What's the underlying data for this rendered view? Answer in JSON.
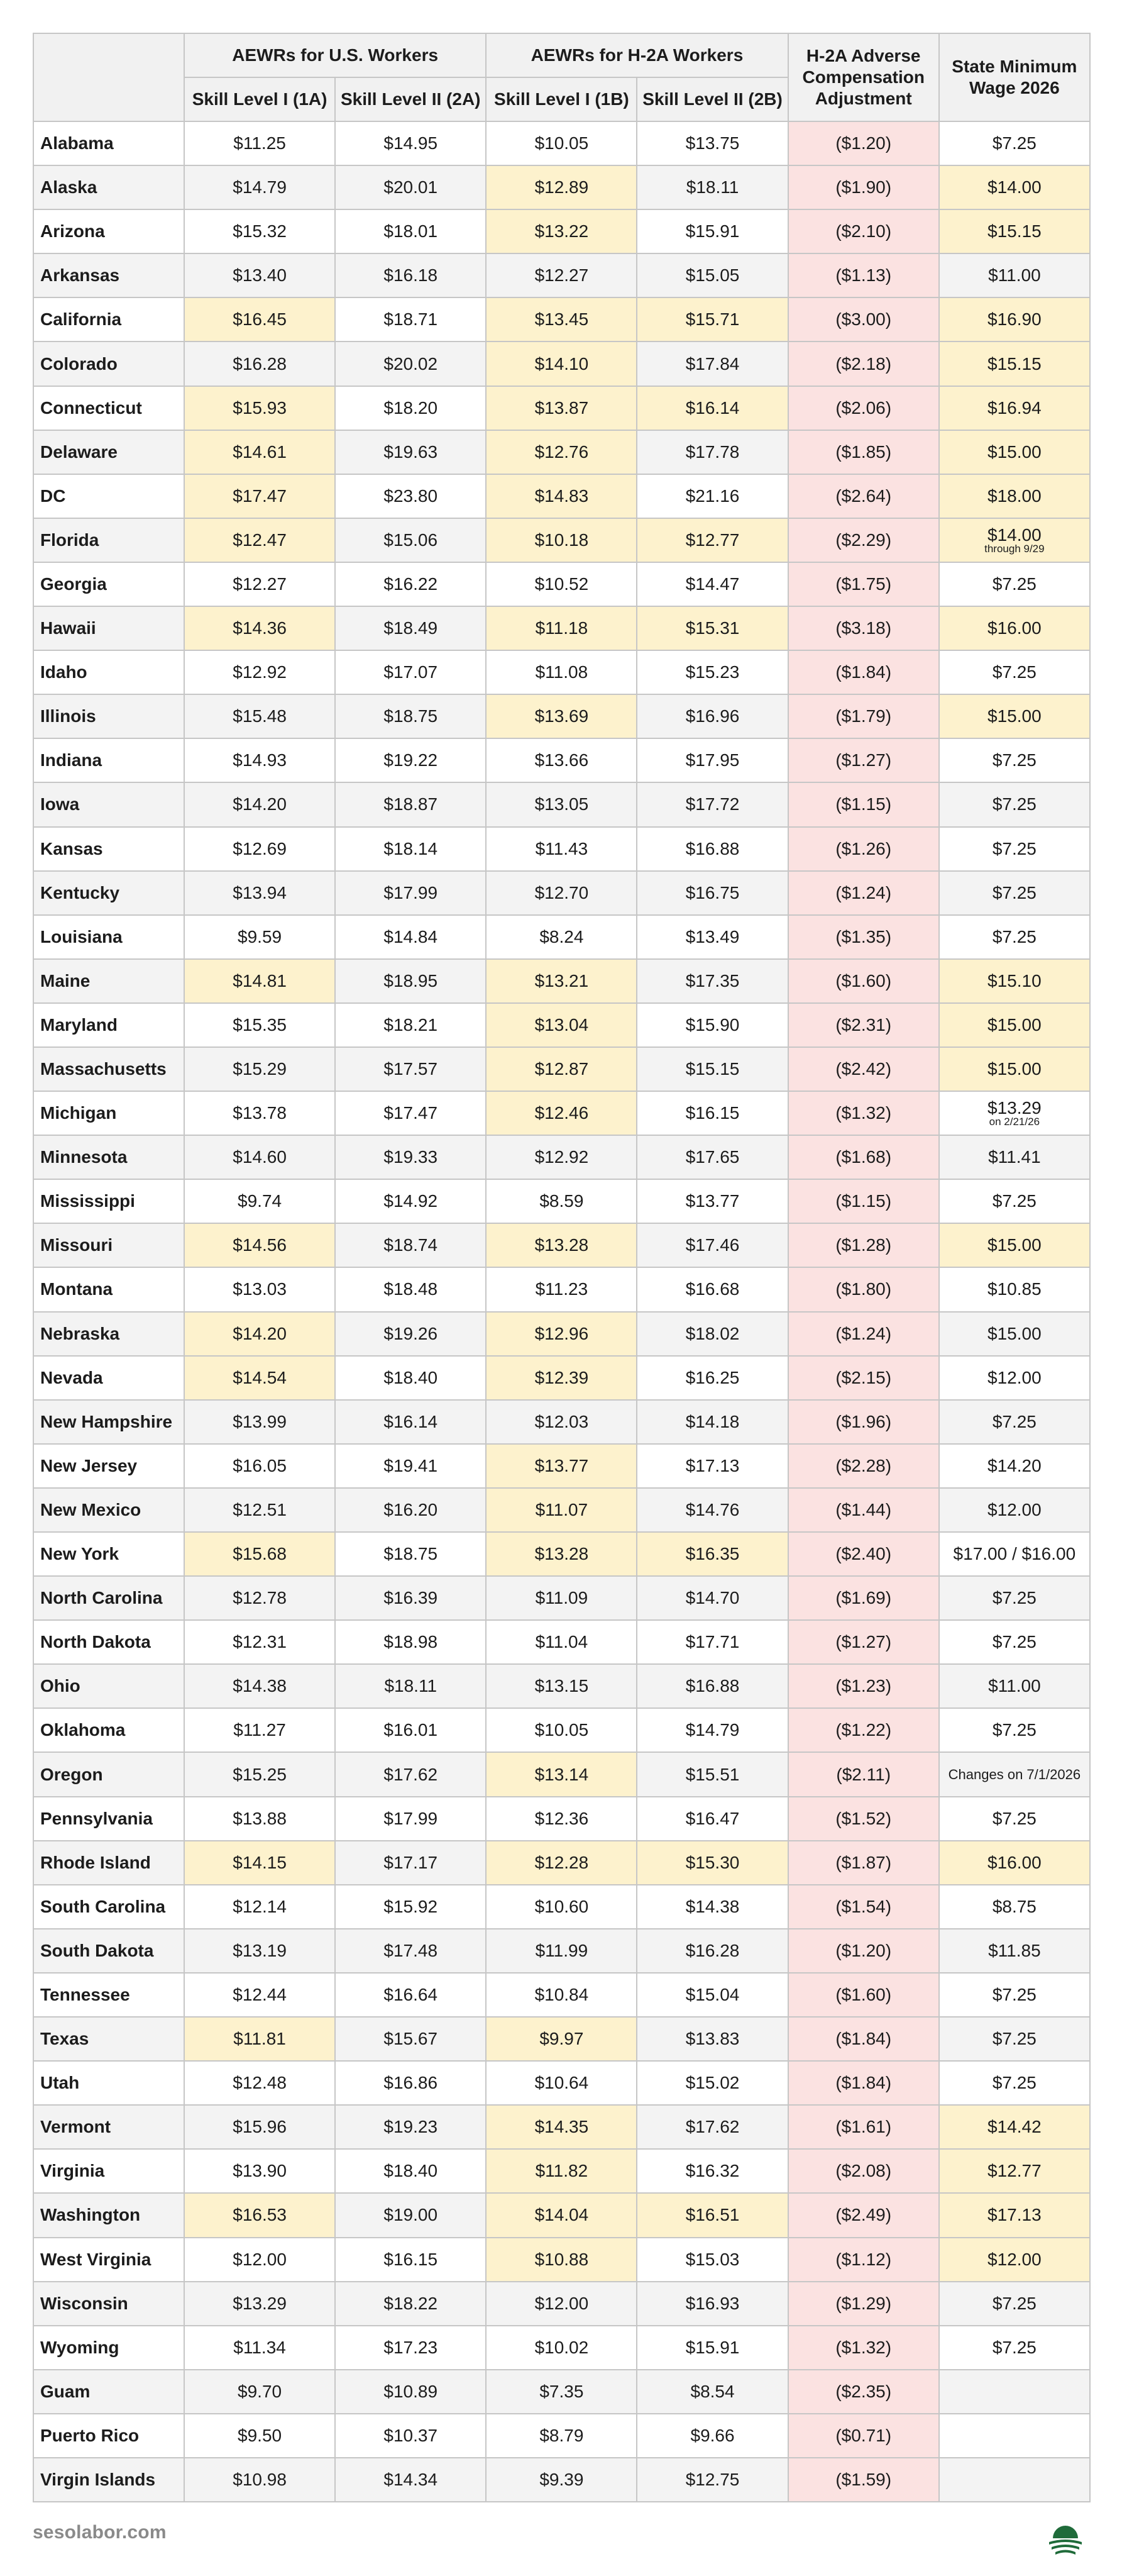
{
  "header": {
    "group_us": "AEWRs for U.S. Workers",
    "group_h2a": "AEWRs for H-2A Workers",
    "adjustment": [
      "H-2A Adverse",
      "Compensation",
      "Adjustment"
    ],
    "min_wage": [
      "State Minimum",
      "Wage 2026"
    ],
    "sub_1a": "Skill Level I (1A)",
    "sub_2a": "Skill Level II (2A)",
    "sub_1b": "Skill Level I (1B)",
    "sub_2b": "Skill Level II (2B)"
  },
  "rows": [
    {
      "state": "Alabama",
      "v1a": "$11.25",
      "v2a": "$14.95",
      "v1b": "$10.05",
      "v2b": "$13.75",
      "adj": "($1.20)",
      "min": "$7.25",
      "hl": []
    },
    {
      "state": "Alaska",
      "v1a": "$14.79",
      "v2a": "$20.01",
      "v1b": "$12.89",
      "v2b": "$18.11",
      "adj": "($1.90)",
      "min": "$14.00",
      "hl": [
        "v1b",
        "min"
      ]
    },
    {
      "state": "Arizona",
      "v1a": "$15.32",
      "v2a": "$18.01",
      "v1b": "$13.22",
      "v2b": "$15.91",
      "adj": "($2.10)",
      "min": "$15.15",
      "hl": [
        "v1b",
        "min"
      ]
    },
    {
      "state": "Arkansas",
      "v1a": "$13.40",
      "v2a": "$16.18",
      "v1b": "$12.27",
      "v2b": "$15.05",
      "adj": "($1.13)",
      "min": "$11.00",
      "hl": []
    },
    {
      "state": "California",
      "v1a": "$16.45",
      "v2a": "$18.71",
      "v1b": "$13.45",
      "v2b": "$15.71",
      "adj": "($3.00)",
      "min": "$16.90",
      "hl": [
        "v1a",
        "v1b",
        "v2b",
        "min"
      ]
    },
    {
      "state": "Colorado",
      "v1a": "$16.28",
      "v2a": "$20.02",
      "v1b": "$14.10",
      "v2b": "$17.84",
      "adj": "($2.18)",
      "min": "$15.15",
      "hl": [
        "v1b",
        "min"
      ]
    },
    {
      "state": "Connecticut",
      "v1a": "$15.93",
      "v2a": "$18.20",
      "v1b": "$13.87",
      "v2b": "$16.14",
      "adj": "($2.06)",
      "min": "$16.94",
      "hl": [
        "v1a",
        "v1b",
        "v2b",
        "min"
      ]
    },
    {
      "state": "Delaware",
      "v1a": "$14.61",
      "v2a": "$19.63",
      "v1b": "$12.76",
      "v2b": "$17.78",
      "adj": "($1.85)",
      "min": "$15.00",
      "hl": [
        "v1a",
        "v1b",
        "min"
      ]
    },
    {
      "state": "DC",
      "v1a": "$17.47",
      "v2a": "$23.80",
      "v1b": "$14.83",
      "v2b": "$21.16",
      "adj": "($2.64)",
      "min": "$18.00",
      "hl": [
        "v1a",
        "v1b",
        "min"
      ]
    },
    {
      "state": "Florida",
      "v1a": "$12.47",
      "v2a": "$15.06",
      "v1b": "$10.18",
      "v2b": "$12.77",
      "adj": "($2.29)",
      "min": "$14.00",
      "note": "through 9/29",
      "hl": [
        "v1a",
        "v1b",
        "v2b",
        "min"
      ]
    },
    {
      "state": "Georgia",
      "v1a": "$12.27",
      "v2a": "$16.22",
      "v1b": "$10.52",
      "v2b": "$14.47",
      "adj": "($1.75)",
      "min": "$7.25",
      "hl": []
    },
    {
      "state": "Hawaii",
      "v1a": "$14.36",
      "v2a": "$18.49",
      "v1b": "$11.18",
      "v2b": "$15.31",
      "adj": "($3.18)",
      "min": "$16.00",
      "hl": [
        "v1a",
        "v1b",
        "v2b",
        "min"
      ]
    },
    {
      "state": "Idaho",
      "v1a": "$12.92",
      "v2a": "$17.07",
      "v1b": "$11.08",
      "v2b": "$15.23",
      "adj": "($1.84)",
      "min": "$7.25",
      "hl": []
    },
    {
      "state": "Illinois",
      "v1a": "$15.48",
      "v2a": "$18.75",
      "v1b": "$13.69",
      "v2b": "$16.96",
      "adj": "($1.79)",
      "min": "$15.00",
      "hl": [
        "v1b",
        "min"
      ]
    },
    {
      "state": "Indiana",
      "v1a": "$14.93",
      "v2a": "$19.22",
      "v1b": "$13.66",
      "v2b": "$17.95",
      "adj": "($1.27)",
      "min": "$7.25",
      "hl": []
    },
    {
      "state": "Iowa",
      "v1a": "$14.20",
      "v2a": "$18.87",
      "v1b": "$13.05",
      "v2b": "$17.72",
      "adj": "($1.15)",
      "min": "$7.25",
      "hl": []
    },
    {
      "state": "Kansas",
      "v1a": "$12.69",
      "v2a": "$18.14",
      "v1b": "$11.43",
      "v2b": "$16.88",
      "adj": "($1.26)",
      "min": "$7.25",
      "hl": []
    },
    {
      "state": "Kentucky",
      "v1a": "$13.94",
      "v2a": "$17.99",
      "v1b": "$12.70",
      "v2b": "$16.75",
      "adj": "($1.24)",
      "min": "$7.25",
      "hl": []
    },
    {
      "state": "Louisiana",
      "v1a": "$9.59",
      "v2a": "$14.84",
      "v1b": "$8.24",
      "v2b": "$13.49",
      "adj": "($1.35)",
      "min": "$7.25",
      "hl": []
    },
    {
      "state": "Maine",
      "v1a": "$14.81",
      "v2a": "$18.95",
      "v1b": "$13.21",
      "v2b": "$17.35",
      "adj": "($1.60)",
      "min": "$15.10",
      "hl": [
        "v1a",
        "v1b",
        "min"
      ]
    },
    {
      "state": "Maryland",
      "v1a": "$15.35",
      "v2a": "$18.21",
      "v1b": "$13.04",
      "v2b": "$15.90",
      "adj": "($2.31)",
      "min": "$15.00",
      "hl": [
        "v1b",
        "min"
      ]
    },
    {
      "state": "Massachusetts",
      "v1a": "$15.29",
      "v2a": "$17.57",
      "v1b": "$12.87",
      "v2b": "$15.15",
      "adj": "($2.42)",
      "min": "$15.00",
      "hl": [
        "v1b",
        "min"
      ]
    },
    {
      "state": "Michigan",
      "v1a": "$13.78",
      "v2a": "$17.47",
      "v1b": "$12.46",
      "v2b": "$16.15",
      "adj": "($1.32)",
      "min": "$13.29",
      "note": "on 2/21/26",
      "hl": [
        "v1b"
      ]
    },
    {
      "state": "Minnesota",
      "v1a": "$14.60",
      "v2a": "$19.33",
      "v1b": "$12.92",
      "v2b": "$17.65",
      "adj": "($1.68)",
      "min": "$11.41",
      "hl": []
    },
    {
      "state": "Mississippi",
      "v1a": "$9.74",
      "v2a": "$14.92",
      "v1b": "$8.59",
      "v2b": "$13.77",
      "adj": "($1.15)",
      "min": "$7.25",
      "hl": []
    },
    {
      "state": "Missouri",
      "v1a": "$14.56",
      "v2a": "$18.74",
      "v1b": "$13.28",
      "v2b": "$17.46",
      "adj": "($1.28)",
      "min": "$15.00",
      "hl": [
        "v1a",
        "v1b",
        "min"
      ]
    },
    {
      "state": "Montana",
      "v1a": "$13.03",
      "v2a": "$18.48",
      "v1b": "$11.23",
      "v2b": "$16.68",
      "adj": "($1.80)",
      "min": "$10.85",
      "hl": []
    },
    {
      "state": "Nebraska",
      "v1a": "$14.20",
      "v2a": "$19.26",
      "v1b": "$12.96",
      "v2b": "$18.02",
      "adj": "($1.24)",
      "min": "$15.00",
      "hl": [
        "v1a",
        "v1b"
      ]
    },
    {
      "state": "Nevada",
      "v1a": "$14.54",
      "v2a": "$18.40",
      "v1b": "$12.39",
      "v2b": "$16.25",
      "adj": "($2.15)",
      "min": "$12.00",
      "hl": [
        "v1a",
        "v1b"
      ]
    },
    {
      "state": "New Hampshire",
      "v1a": "$13.99",
      "v2a": "$16.14",
      "v1b": "$12.03",
      "v2b": "$14.18",
      "adj": "($1.96)",
      "min": "$7.25",
      "hl": []
    },
    {
      "state": "New Jersey",
      "v1a": "$16.05",
      "v2a": "$19.41",
      "v1b": "$13.77",
      "v2b": "$17.13",
      "adj": "($2.28)",
      "min": "$14.20",
      "hl": [
        "v1b"
      ]
    },
    {
      "state": "New Mexico",
      "v1a": "$12.51",
      "v2a": "$16.20",
      "v1b": "$11.07",
      "v2b": "$14.76",
      "adj": "($1.44)",
      "min": "$12.00",
      "hl": [
        "v1b"
      ]
    },
    {
      "state": "New York",
      "v1a": "$15.68",
      "v2a": "$18.75",
      "v1b": "$13.28",
      "v2b": "$16.35",
      "adj": "($2.40)",
      "min": "$17.00 / $16.00",
      "hl": [
        "v1a",
        "v1b",
        "v2b"
      ]
    },
    {
      "state": "North Carolina",
      "v1a": "$12.78",
      "v2a": "$16.39",
      "v1b": "$11.09",
      "v2b": "$14.70",
      "adj": "($1.69)",
      "min": "$7.25",
      "hl": []
    },
    {
      "state": "North Dakota",
      "v1a": "$12.31",
      "v2a": "$18.98",
      "v1b": "$11.04",
      "v2b": "$17.71",
      "adj": "($1.27)",
      "min": "$7.25",
      "hl": []
    },
    {
      "state": "Ohio",
      "v1a": "$14.38",
      "v2a": "$18.11",
      "v1b": "$13.15",
      "v2b": "$16.88",
      "adj": "($1.23)",
      "min": "$11.00",
      "hl": []
    },
    {
      "state": "Oklahoma",
      "v1a": "$11.27",
      "v2a": "$16.01",
      "v1b": "$10.05",
      "v2b": "$14.79",
      "adj": "($1.22)",
      "min": "$7.25",
      "hl": []
    },
    {
      "state": "Oregon",
      "v1a": "$15.25",
      "v2a": "$17.62",
      "v1b": "$13.14",
      "v2b": "$15.51",
      "adj": "($2.11)",
      "min": "Changes on 7/1/2026",
      "small": true,
      "hl": [
        "v1b"
      ]
    },
    {
      "state": "Pennsylvania",
      "v1a": "$13.88",
      "v2a": "$17.99",
      "v1b": "$12.36",
      "v2b": "$16.47",
      "adj": "($1.52)",
      "min": "$7.25",
      "hl": []
    },
    {
      "state": "Rhode Island",
      "v1a": "$14.15",
      "v2a": "$17.17",
      "v1b": "$12.28",
      "v2b": "$15.30",
      "adj": "($1.87)",
      "min": "$16.00",
      "hl": [
        "v1a",
        "v1b",
        "v2b",
        "min"
      ]
    },
    {
      "state": "South Carolina",
      "v1a": "$12.14",
      "v2a": "$15.92",
      "v1b": "$10.60",
      "v2b": "$14.38",
      "adj": "($1.54)",
      "min": "$8.75",
      "hl": []
    },
    {
      "state": "South Dakota",
      "v1a": "$13.19",
      "v2a": "$17.48",
      "v1b": "$11.99",
      "v2b": "$16.28",
      "adj": "($1.20)",
      "min": "$11.85",
      "hl": []
    },
    {
      "state": "Tennessee",
      "v1a": "$12.44",
      "v2a": "$16.64",
      "v1b": "$10.84",
      "v2b": "$15.04",
      "adj": "($1.60)",
      "min": "$7.25",
      "hl": []
    },
    {
      "state": "Texas",
      "v1a": "$11.81",
      "v2a": "$15.67",
      "v1b": "$9.97",
      "v2b": "$13.83",
      "adj": "($1.84)",
      "min": "$7.25",
      "hl": [
        "v1a",
        "v1b"
      ]
    },
    {
      "state": "Utah",
      "v1a": "$12.48",
      "v2a": "$16.86",
      "v1b": "$10.64",
      "v2b": "$15.02",
      "adj": "($1.84)",
      "min": "$7.25",
      "hl": []
    },
    {
      "state": "Vermont",
      "v1a": "$15.96",
      "v2a": "$19.23",
      "v1b": "$14.35",
      "v2b": "$17.62",
      "adj": "($1.61)",
      "min": "$14.42",
      "hl": [
        "v1b",
        "min"
      ]
    },
    {
      "state": "Virginia",
      "v1a": "$13.90",
      "v2a": "$18.40",
      "v1b": "$11.82",
      "v2b": "$16.32",
      "adj": "($2.08)",
      "min": "$12.77",
      "hl": [
        "v1b",
        "min"
      ]
    },
    {
      "state": "Washington",
      "v1a": "$16.53",
      "v2a": "$19.00",
      "v1b": "$14.04",
      "v2b": "$16.51",
      "adj": "($2.49)",
      "min": "$17.13",
      "hl": [
        "v1a",
        "v1b",
        "v2b",
        "min"
      ]
    },
    {
      "state": "West Virginia",
      "v1a": "$12.00",
      "v2a": "$16.15",
      "v1b": "$10.88",
      "v2b": "$15.03",
      "adj": "($1.12)",
      "min": "$12.00",
      "hl": [
        "v1b",
        "min"
      ]
    },
    {
      "state": "Wisconsin",
      "v1a": "$13.29",
      "v2a": "$18.22",
      "v1b": "$12.00",
      "v2b": "$16.93",
      "adj": "($1.29)",
      "min": "$7.25",
      "hl": []
    },
    {
      "state": "Wyoming",
      "v1a": "$11.34",
      "v2a": "$17.23",
      "v1b": "$10.02",
      "v2b": "$15.91",
      "adj": "($1.32)",
      "min": "$7.25",
      "hl": []
    },
    {
      "state": "Guam",
      "v1a": "$9.70",
      "v2a": "$10.89",
      "v1b": "$7.35",
      "v2b": "$8.54",
      "adj": "($2.35)",
      "min": "",
      "hl": []
    },
    {
      "state": "Puerto Rico",
      "v1a": "$9.50",
      "v2a": "$10.37",
      "v1b": "$8.79",
      "v2b": "$9.66",
      "adj": "($0.71)",
      "min": "",
      "hl": []
    },
    {
      "state": "Virgin Islands",
      "v1a": "$10.98",
      "v2a": "$14.34",
      "v1b": "$9.39",
      "v2b": "$12.75",
      "adj": "($1.59)",
      "min": "",
      "hl": []
    }
  ],
  "colors": {
    "highlight": "#fdf2cd",
    "adjustment": "#fbe2e1",
    "header_bg": "#f1f1f1",
    "zebra": "#f3f3f3",
    "logo_green": "#1f6b3a"
  },
  "footer": {
    "site": "sesolabor.com",
    "logo_icon": "sun-over-field-logo-icon"
  }
}
